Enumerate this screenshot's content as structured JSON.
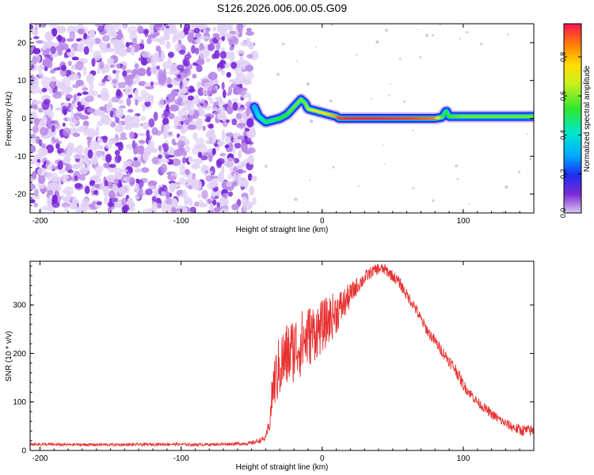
{
  "figure_title": "S126.2026.006.00.05.G09",
  "colors": {
    "accent_red": "#e83030",
    "noise_purple": "#7b2ad6",
    "axes": "#000000"
  },
  "chart_data": [
    {
      "type": "heatmap",
      "title": "S126.2026.006.00.05.G09",
      "xlabel": "Height of straight line (km)",
      "ylabel": "Frequency (Hz)",
      "xlim": [
        -207,
        150
      ],
      "ylim": [
        -25,
        25
      ],
      "xticks": [
        -200,
        -100,
        0,
        100
      ],
      "yticks": [
        -20,
        -10,
        0,
        10,
        20
      ],
      "colorscale": "rainbow",
      "colorbar_label": "Normalized spectral amplitude",
      "colorbar_ticks": [
        "0.0",
        "0.2",
        "0.4",
        "0.6",
        "0.8"
      ],
      "colorbar_range": [
        0,
        0.97
      ],
      "noise_region_xlim": [
        -207,
        -48
      ],
      "ridge": {
        "x": [
          -48,
          -45,
          -40,
          -35,
          -30,
          -25,
          -20,
          -15,
          -12,
          -10,
          -5,
          0,
          5,
          10,
          12,
          20,
          40,
          60,
          80,
          85,
          88,
          90,
          100,
          120,
          140,
          150
        ],
        "freq": [
          3,
          0.5,
          -1,
          -0.5,
          0,
          1,
          3,
          5,
          4,
          2.5,
          2,
          1.5,
          1,
          0.5,
          0,
          0,
          0,
          0,
          0,
          0.3,
          2,
          0.5,
          0.5,
          0.5,
          0.5,
          0.5
        ],
        "amplitude": [
          0.3,
          0.4,
          0.5,
          0.5,
          0.55,
          0.55,
          0.6,
          0.6,
          0.6,
          0.65,
          0.7,
          0.75,
          0.8,
          0.85,
          0.95,
          0.97,
          0.97,
          0.95,
          0.9,
          0.6,
          0.5,
          0.55,
          0.6,
          0.6,
          0.6,
          0.6
        ]
      }
    },
    {
      "type": "line",
      "xlabel": "Height of straight line (km)",
      "ylabel": "SNR (10 * v/v)",
      "xlim": [
        -207,
        150
      ],
      "ylim": [
        0,
        390
      ],
      "xticks": [
        -200,
        -100,
        0,
        100
      ],
      "yticks": [
        0,
        100,
        200,
        300
      ],
      "series": [
        {
          "color": "#e83030",
          "x": [
            -207,
            -190,
            -170,
            -150,
            -130,
            -110,
            -90,
            -70,
            -50,
            -40,
            -37,
            -35,
            -30,
            -25,
            -20,
            -15,
            -10,
            -5,
            0,
            5,
            10,
            15,
            20,
            25,
            30,
            35,
            40,
            45,
            50,
            55,
            60,
            65,
            70,
            75,
            80,
            85,
            90,
            95,
            100,
            110,
            120,
            130,
            140,
            150
          ],
          "y": [
            13,
            12,
            12,
            12,
            12,
            13,
            12,
            13,
            15,
            25,
            60,
            130,
            175,
            195,
            210,
            220,
            235,
            245,
            255,
            270,
            285,
            300,
            320,
            340,
            355,
            368,
            375,
            372,
            360,
            345,
            320,
            300,
            270,
            245,
            225,
            205,
            185,
            165,
            135,
            100,
            75,
            55,
            42,
            40
          ],
          "amp": [
            3,
            3,
            3,
            3,
            3,
            3,
            3,
            3,
            4,
            6,
            20,
            50,
            70,
            70,
            70,
            70,
            65,
            60,
            55,
            50,
            45,
            35,
            25,
            18,
            15,
            12,
            12,
            12,
            12,
            12,
            12,
            12,
            12,
            12,
            12,
            12,
            12,
            14,
            12,
            10,
            10,
            10,
            12,
            12
          ]
        }
      ]
    }
  ]
}
